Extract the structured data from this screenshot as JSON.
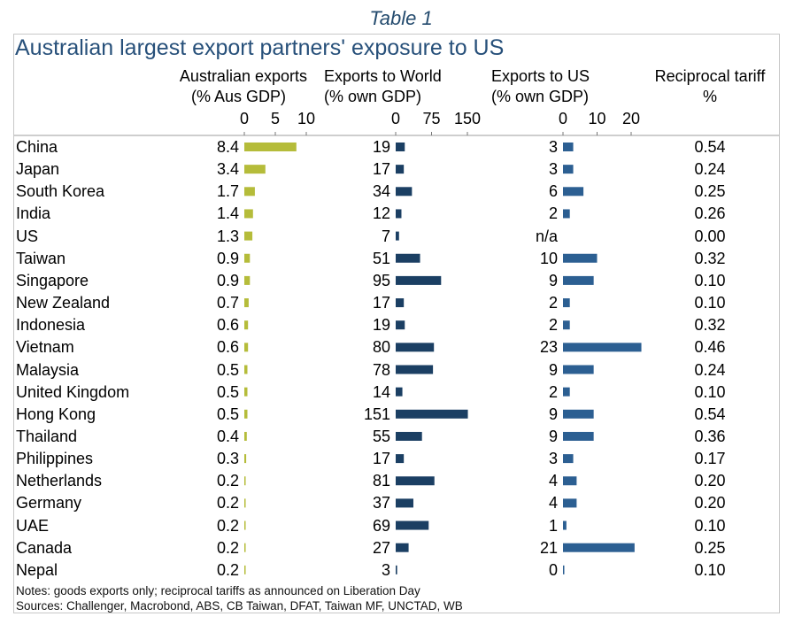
{
  "caption": "Table 1",
  "colors": {
    "aus_bar": "#b5bc3a",
    "world_bar": "#1b3f63",
    "us_bar": "#2c5f92",
    "title": "#27507a",
    "caption": "#244b6e",
    "frame": "#c8c8c8",
    "axis": "#b0b0b0"
  },
  "chart_data": {
    "type": "table",
    "title": "Australian largest export partners' exposure to US",
    "columns": [
      {
        "key": "aus",
        "header_line1": "Australian exports",
        "header_line2": "(% Aus GDP)",
        "ticks": [
          "0",
          "5",
          "10"
        ],
        "range": [
          0,
          10
        ],
        "bar": true
      },
      {
        "key": "world",
        "header_line1": "Exports to World",
        "header_line2": "(% own GDP)",
        "ticks": [
          "0",
          "75",
          "150"
        ],
        "range": [
          0,
          150
        ],
        "bar": true
      },
      {
        "key": "us",
        "header_line1": "Exports to US",
        "header_line2": "(% own GDP)",
        "ticks": [
          "0",
          "10",
          "20"
        ],
        "range": [
          0,
          20
        ],
        "bar": true
      },
      {
        "key": "tariff",
        "header_line1": "Reciprocal tariff",
        "header_line2": "%",
        "bar": false
      }
    ],
    "categories": [
      "China",
      "Japan",
      "South Korea",
      "India",
      "US",
      "Taiwan",
      "Singapore",
      "New Zealand",
      "Indonesia",
      "Vietnam",
      "Malaysia",
      "United Kingdom",
      "Hong Kong",
      "Thailand",
      "Philippines",
      "Netherlands",
      "Germany",
      "UAE",
      "Canada",
      "Nepal"
    ],
    "series": [
      {
        "name": "Australian exports (% Aus GDP)",
        "values": [
          8.4,
          3.4,
          1.7,
          1.4,
          1.3,
          0.9,
          0.9,
          0.7,
          0.6,
          0.6,
          0.5,
          0.5,
          0.5,
          0.4,
          0.3,
          0.2,
          0.2,
          0.2,
          0.2,
          0.2
        ],
        "labels": [
          "8.4",
          "3.4",
          "1.7",
          "1.4",
          "1.3",
          "0.9",
          "0.9",
          "0.7",
          "0.6",
          "0.6",
          "0.5",
          "0.5",
          "0.5",
          "0.4",
          "0.3",
          "0.2",
          "0.2",
          "0.2",
          "0.2",
          "0.2"
        ]
      },
      {
        "name": "Exports to World (% own GDP)",
        "values": [
          19,
          17,
          34,
          12,
          7,
          51,
          95,
          17,
          19,
          80,
          78,
          14,
          151,
          55,
          17,
          81,
          37,
          69,
          27,
          3
        ],
        "labels": [
          "19",
          "17",
          "34",
          "12",
          "7",
          "51",
          "95",
          "17",
          "19",
          "80",
          "78",
          "14",
          "151",
          "55",
          "17",
          "81",
          "37",
          "69",
          "27",
          "3"
        ]
      },
      {
        "name": "Exports to US (% own GDP)",
        "values": [
          3,
          3,
          6,
          2,
          null,
          10,
          9,
          2,
          2,
          23,
          9,
          2,
          9,
          9,
          3,
          4,
          4,
          1,
          21,
          0
        ],
        "labels": [
          "3",
          "3",
          "6",
          "2",
          "n/a",
          "10",
          "9",
          "2",
          "2",
          "23",
          "9",
          "2",
          "9",
          "9",
          "3",
          "4",
          "4",
          "1",
          "21",
          "0"
        ]
      },
      {
        "name": "Reciprocal tariff %",
        "values": [
          0.54,
          0.24,
          0.25,
          0.26,
          0.0,
          0.32,
          0.1,
          0.1,
          0.32,
          0.46,
          0.24,
          0.1,
          0.54,
          0.36,
          0.17,
          0.2,
          0.2,
          0.1,
          0.25,
          0.1
        ],
        "labels": [
          "0.54",
          "0.24",
          "0.25",
          "0.26",
          "0.00",
          "0.32",
          "0.10",
          "0.10",
          "0.32",
          "0.46",
          "0.24",
          "0.10",
          "0.54",
          "0.36",
          "0.17",
          "0.20",
          "0.20",
          "0.10",
          "0.25",
          "0.10"
        ]
      }
    ]
  },
  "notes": "Notes: goods exports only; reciprocal tariffs as announced on Liberation Day",
  "sources": "Sources: Challenger, Macrobond, ABS, CB Taiwan, DFAT, Taiwan MF, UNCTAD, WB"
}
